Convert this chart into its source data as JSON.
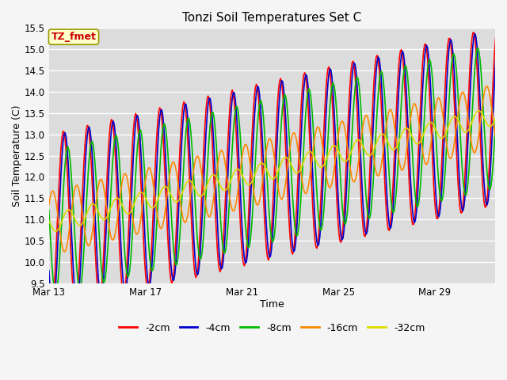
{
  "title": "Tonzi Soil Temperatures Set C",
  "xlabel": "Time",
  "ylabel": "Soil Temperature (C)",
  "annotation": "TZ_fmet",
  "ylim": [
    9.5,
    15.5
  ],
  "yticks": [
    9.5,
    10.0,
    10.5,
    11.0,
    11.5,
    12.0,
    12.5,
    13.0,
    13.5,
    14.0,
    14.5,
    15.0,
    15.5
  ],
  "xtick_labels": [
    "Mar 13",
    "Mar 17",
    "Mar 21",
    "Mar 25",
    "Mar 29"
  ],
  "xtick_positions": [
    0,
    4,
    8,
    12,
    16
  ],
  "series_colors": [
    "#ff0000",
    "#0000cc",
    "#00bb00",
    "#ff8800",
    "#dddd00"
  ],
  "series_labels": [
    "-2cm",
    "-4cm",
    "-8cm",
    "-16cm",
    "-32cm"
  ],
  "plot_bg_color": "#dcdcdc",
  "fig_bg_color": "#f5f5f5",
  "line_width": 1.2,
  "n_days": 19,
  "trend_start": 10.9,
  "trend_end": 13.5,
  "amplitudes": [
    2.1,
    2.05,
    1.7,
    0.75,
    0.22
  ],
  "phase_lags_days": [
    0.0,
    0.06,
    0.18,
    0.55,
    1.2
  ],
  "amp_trend_factor": [
    1.0,
    1.0,
    1.0,
    1.0,
    1.0
  ]
}
